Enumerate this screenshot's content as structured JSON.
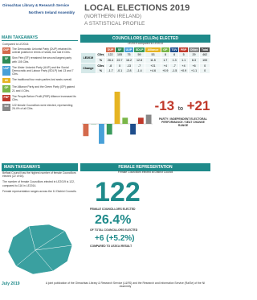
{
  "header": {
    "org": "Oireachtas Library & Research Service",
    "assembly": "Northern Ireland Assembly",
    "title": "LOCAL ELECTIONS 2019",
    "subtitle": "(NORTHERN IRELAND)",
    "tagline": "A STATISTICAL PROFILE"
  },
  "takeaways": {
    "heading": "MAIN TAKEAWAYS",
    "intro": "Compared to LE2014:",
    "items": [
      {
        "tag": "DUP",
        "color": "#d46a4c",
        "text": "The Democratic Unionist Party (DUP) retained its overall position in terms of seats, but lost 8 Cllrs."
      },
      {
        "tag": "SF",
        "color": "#2e8b57",
        "text": "Sinn Féin (SF) remained the second largest party with 105 Cllrs."
      },
      {
        "tag": "UUP",
        "color": "#48a0d8",
        "text": "The Ulster Unionist Party (UUP) and the Social Democratic and Labour Party (SDLP) lost 13 and 7 Cllrs."
      },
      {
        "tag": "All",
        "color": "#e6b422",
        "text": "The traditional four main parties lost seats overall."
      },
      {
        "tag": "GP",
        "color": "#7ab648",
        "text": "The Alliance Party and the Green Party (GP) gained 21 and 4 Cllrs."
      },
      {
        "tag": "PBP",
        "color": "#c0392b",
        "text": "The People Before Profit (PBP) Alliance increased its Cllrs."
      },
      {
        "tag": "Ind",
        "color": "#888888",
        "text": "122 female Councillors were elected, representing 26.4% of all Cllrs."
      }
    ]
  },
  "councillors": {
    "heading": "COUNCILLORS (CLLRs) ELECTED",
    "subheading": "LE2019 compared to LE2014",
    "parties": [
      "DUP",
      "SF",
      "UUP",
      "SDLP",
      "Alliance",
      "GP",
      "TUV",
      "PBP",
      "Other",
      "Total"
    ],
    "colors": [
      "#d46a4c",
      "#2e8b57",
      "#48a0d8",
      "#3a9a5b",
      "#e6b422",
      "#7ab648",
      "#1f4e8c",
      "#c0392b",
      "#888888",
      "#555555"
    ],
    "groups": [
      {
        "label": "LE2019",
        "rows": [
          {
            "label": "Cllrs",
            "cells": [
              "122",
              "105",
              "75",
              "59",
              "53",
              "8",
              "6",
              "5",
              "29",
              "462"
            ]
          },
          {
            "label": "%",
            "cells": [
              "26.4",
              "22.7",
              "16.2",
              "12.8",
              "11.5",
              "1.7",
              "1.3",
              "1.1",
              "6.3",
              "100"
            ]
          }
        ]
      },
      {
        "label": "Change",
        "rows": [
          {
            "label": "Cllrs",
            "cells": [
              "-8",
              "0",
              "-13",
              "-7",
              "+21",
              "+4",
              "-7",
              "+4",
              "+6",
              "0"
            ]
          },
          {
            "label": "%",
            "cells": [
              "-1.7",
              "-0.1",
              "-2.8",
              "-1.4",
              "+4.6",
              "+0.9",
              "-1.5",
              "+0.9",
              "+1.1",
              "0"
            ]
          }
        ]
      }
    ],
    "range_low": "-13",
    "range_word": "to",
    "range_high": "+21",
    "range_caption": "PARTY / INDEPENDENT ELECTORAL PERFORMANCE / SEAT CHANGE RANGE"
  },
  "female": {
    "heading": "FEMALE REPRESENTATION",
    "subheading": "Female Councillors elected at District Council",
    "count": "122",
    "count_label": "FEMALE COUNCILLORS ELECTED",
    "share": "26.4%",
    "share_label": "OF TOTAL COUNCILLORS ELECTED",
    "change": "+6 (+5.2%)",
    "change_label": "COMPARED TO LE2014 RESULT"
  },
  "female_takeaways": {
    "heading": "MAIN TAKEAWAYS",
    "paragraphs": [
      "Belfast Council has the highest number of female Councillors elected (22 of 60).",
      "The number of female Councillors elected in LE2019 is 122, compared to 116 in LE2014.",
      "Female representation ranges across the 11 District Councils."
    ]
  },
  "footer": {
    "date": "July 2019",
    "note": "A joint publication of the Oireachtas Library & Research Service (L&RS) and the Research and Information Service (RaISe) of the NI Assembly"
  }
}
